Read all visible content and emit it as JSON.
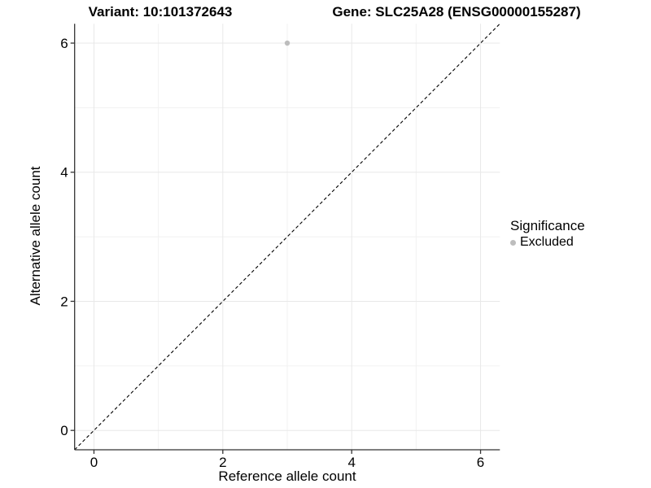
{
  "header": {
    "variant_title": "Variant: 10:101372643",
    "gene_title": "Gene: SLC25A28 (ENSG00000155287)"
  },
  "legend": {
    "title": "Significance",
    "items": [
      {
        "label": "Excluded",
        "color": "#bdbdbd",
        "marker": "circle"
      }
    ]
  },
  "colors": {
    "background": "#ffffff",
    "grid_major": "#e8e8e8",
    "grid_minor": "#f1f1f1",
    "axis": "#333333",
    "text": "#000000",
    "point": "#bdbdbd",
    "reference_line": "#000000"
  },
  "chart_data": {
    "type": "scatter",
    "title_left": "Variant: 10:101372643",
    "title_right": "Gene: SLC25A28 (ENSG00000155287)",
    "xlabel": "Reference allele count",
    "ylabel": "Alternative allele count",
    "xlim": [
      -0.3,
      6.3
    ],
    "ylim": [
      -0.3,
      6.3
    ],
    "x_major_ticks": [
      0,
      2,
      4,
      6
    ],
    "y_major_ticks": [
      0,
      2,
      4,
      6
    ],
    "x_minor_gridlines": [
      1,
      3,
      5
    ],
    "y_minor_gridlines": [
      1,
      3,
      5
    ],
    "grid": "major and minor, light gray on white",
    "legend_position": "right",
    "series": [
      {
        "name": "Excluded",
        "color": "#bdbdbd",
        "marker": "circle",
        "points": [
          [
            3,
            6
          ]
        ]
      }
    ],
    "reference_line": {
      "type": "identity",
      "equation": "y = x",
      "style": "dashed",
      "color": "#000000",
      "from": -0.3,
      "to": 6.3
    }
  }
}
